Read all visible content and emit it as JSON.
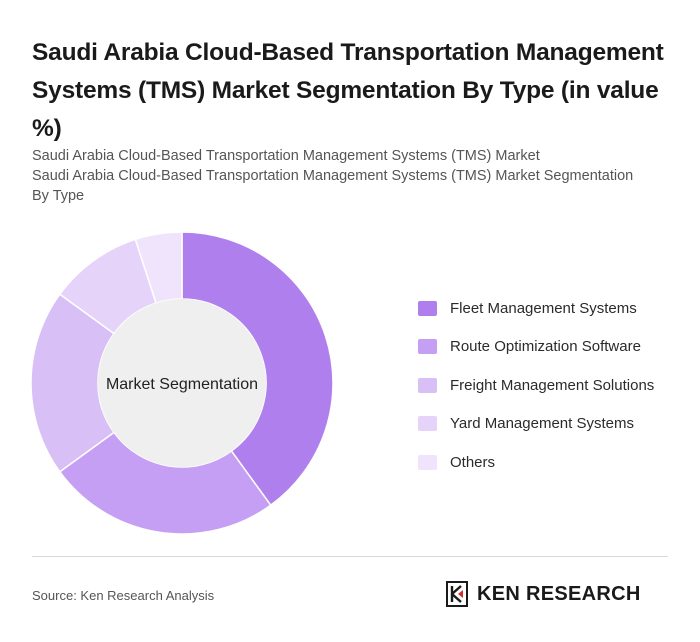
{
  "header": {
    "title": "Saudi Arabia Cloud-Based Transportation Management Systems (TMS) Market Segmentation By Type (in value %)",
    "subtitle_line1": "Saudi Arabia Cloud-Based Transportation Management Systems (TMS) Market",
    "subtitle_line2": "Saudi Arabia Cloud-Based Transportation Management Systems (TMS) Market Segmentation By Type"
  },
  "chart_data": {
    "type": "pie",
    "variant": "donut",
    "center_label": "Market Segmentation",
    "categories": [
      "Fleet Management Systems",
      "Route Optimization Software",
      "Freight Management Solutions",
      "Yard Management Systems",
      "Others"
    ],
    "values": [
      40,
      25,
      20,
      10,
      5
    ],
    "colors": [
      "#b07fee",
      "#c59ff3",
      "#d8bff6",
      "#e5d3f9",
      "#efe4fb"
    ],
    "legend_position": "right"
  },
  "footer": {
    "source": "Source: Ken Research Analysis",
    "brand": "KEN RESEARCH",
    "brand_icon": "ken-research-logo-icon"
  }
}
